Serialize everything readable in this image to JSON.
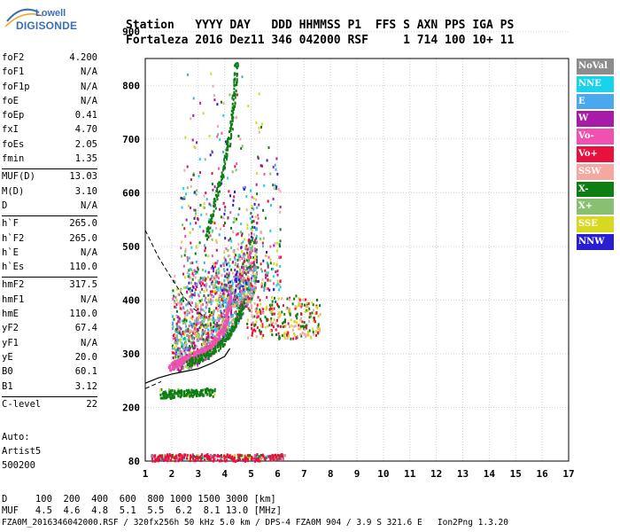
{
  "logo": {
    "line1": "Lowell",
    "line2": "DIGISONDE"
  },
  "header": {
    "labels_line": "Station   YYYY DAY   DDD HHMMSS P1  FFS S AXN PPS IGA PS",
    "values_line": "Fortaleza 2016 Dez11 346 042000 RSF     1 714 100 10+ 11"
  },
  "parameters": {
    "group1": [
      {
        "label": "foF2",
        "value": "4.200"
      },
      {
        "label": "foF1",
        "value": "N/A"
      },
      {
        "label": "foF1p",
        "value": "N/A"
      },
      {
        "label": "foE",
        "value": "N/A"
      },
      {
        "label": "foEp",
        "value": "0.41"
      },
      {
        "label": "fxI",
        "value": "4.70"
      },
      {
        "label": "foEs",
        "value": "2.05"
      },
      {
        "label": "fmin",
        "value": "1.35"
      }
    ],
    "group2": [
      {
        "label": "MUF(D)",
        "value": "13.03"
      },
      {
        "label": "M(D)",
        "value": "3.10"
      },
      {
        "label": "D",
        "value": "N/A"
      }
    ],
    "group3": [
      {
        "label": "h`F",
        "value": "265.0"
      },
      {
        "label": "h`F2",
        "value": "265.0"
      },
      {
        "label": "h`E",
        "value": "N/A"
      },
      {
        "label": "h`Es",
        "value": "110.0"
      }
    ],
    "group4": [
      {
        "label": "hmF2",
        "value": "317.5"
      },
      {
        "label": "hmF1",
        "value": "N/A"
      },
      {
        "label": "hmE",
        "value": "110.0"
      },
      {
        "label": "yF2",
        "value": "67.4"
      },
      {
        "label": "yF1",
        "value": "N/A"
      },
      {
        "label": "yE",
        "value": "20.0"
      },
      {
        "label": "B0",
        "value": "60.1"
      },
      {
        "label": "B1",
        "value": "3.12"
      }
    ],
    "group5": [
      {
        "label": "C-level",
        "value": "22"
      }
    ]
  },
  "auto": {
    "line1": "Auto:",
    "line2": "Artist5",
    "line3": "500200"
  },
  "legend": [
    {
      "label": "NoVal",
      "color": "#8c8c8c"
    },
    {
      "label": "NNE",
      "color": "#19d3ec"
    },
    {
      "label": "E",
      "color": "#4aa9ee"
    },
    {
      "label": "W",
      "color": "#a81aa8"
    },
    {
      "label": "Vo-",
      "color": "#f050b0"
    },
    {
      "label": "Vo+",
      "color": "#e8103c"
    },
    {
      "label": "SSW",
      "color": "#f4a8a0"
    },
    {
      "label": "X-",
      "color": "#0c7e14"
    },
    {
      "label": "X+",
      "color": "#86c070"
    },
    {
      "label": "SSE",
      "color": "#d8d820"
    },
    {
      "label": "NNW",
      "color": "#2a1ed4"
    }
  ],
  "chart_data": {
    "type": "scatter",
    "xlabel": "",
    "ylabel": "",
    "xlim": [
      1,
      17
    ],
    "ylim": [
      80,
      900
    ],
    "x_ticks": [
      "1",
      "2",
      "3",
      "4",
      "5",
      "6",
      "7",
      "8",
      "9",
      "10",
      "11",
      "12",
      "13",
      "14",
      "15",
      "16",
      "17"
    ],
    "y_ticks": [
      "80",
      "200",
      "300",
      "400",
      "500",
      "600",
      "700",
      "800",
      "900"
    ],
    "grid": true,
    "traces": [
      {
        "name": "F2 o-trace",
        "color": "#f050b0",
        "points": [
          [
            1.9,
            275
          ],
          [
            2.2,
            285
          ],
          [
            2.5,
            292
          ],
          [
            2.8,
            298
          ],
          [
            3.1,
            305
          ],
          [
            3.4,
            315
          ],
          [
            3.7,
            330
          ],
          [
            3.95,
            350
          ],
          [
            4.1,
            380
          ],
          [
            4.2,
            410
          ]
        ]
      },
      {
        "name": "F2 x-trace",
        "color": "#0c7e14",
        "points": [
          [
            2.6,
            285
          ],
          [
            3.0,
            292
          ],
          [
            3.4,
            300
          ],
          [
            3.8,
            318
          ],
          [
            4.2,
            340
          ],
          [
            4.5,
            370
          ],
          [
            4.7,
            400
          ]
        ]
      },
      {
        "name": "Es trace",
        "color": "#0c7e14",
        "points": [
          [
            1.6,
            225
          ],
          [
            2.0,
            225
          ],
          [
            2.5,
            228
          ],
          [
            3.0,
            230
          ],
          [
            3.6,
            232
          ]
        ]
      },
      {
        "name": "E-region 80km",
        "color": "#e8103c",
        "points": [
          [
            1.3,
            90
          ],
          [
            2.0,
            90
          ],
          [
            3.0,
            90
          ],
          [
            4.0,
            90
          ],
          [
            5.0,
            90
          ],
          [
            6.3,
            90
          ]
        ]
      },
      {
        "name": "2nd hop",
        "color": "#0c7e14",
        "points": [
          [
            3.3,
            520
          ],
          [
            3.6,
            580
          ],
          [
            3.9,
            640
          ],
          [
            4.15,
            700
          ],
          [
            4.3,
            760
          ],
          [
            4.4,
            820
          ],
          [
            4.45,
            880
          ]
        ]
      }
    ],
    "profile_curve": [
      [
        1.0,
        245
      ],
      [
        1.5,
        255
      ],
      [
        2.0,
        262
      ],
      [
        2.5,
        267
      ],
      [
        3.0,
        272
      ],
      [
        3.5,
        282
      ],
      [
        4.0,
        295
      ],
      [
        4.2,
        310
      ]
    ],
    "muf_curve": [
      [
        1.0,
        530
      ],
      [
        1.5,
        480
      ],
      [
        2.0,
        440
      ],
      [
        2.4,
        410
      ],
      [
        2.8,
        385
      ],
      [
        3.2,
        370
      ]
    ]
  },
  "bottom_table": {
    "row1": "D     100  200  400  600  800 1000 1500 3000 [km]",
    "row2": "MUF   4.5  4.6  4.8  5.1  5.5  6.2  8.1 13.0 [MHz]"
  },
  "footer": "FZA0M_2016346042000.RSF / 320fx256h 50 kHz 5.0 km / DPS-4 FZA0M 904 / 3.9 S 321.6 E   Ion2Png 1.3.20"
}
